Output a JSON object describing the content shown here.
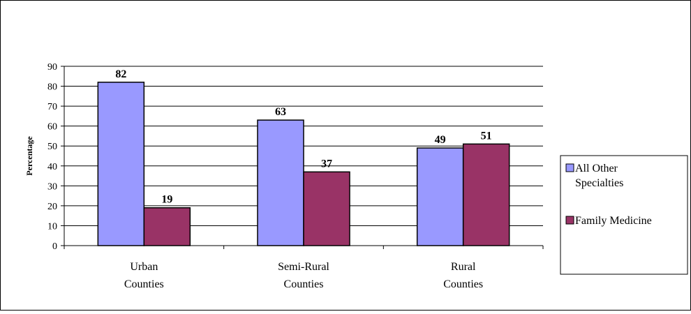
{
  "chart_data": {
    "type": "bar",
    "title": "",
    "xlabel": "",
    "ylabel": "Percentage",
    "ylim": [
      0,
      90
    ],
    "yticks": [
      0,
      10,
      20,
      30,
      40,
      50,
      60,
      70,
      80,
      90
    ],
    "grid": true,
    "legend_position": "right",
    "categories": [
      [
        "Urban",
        "Counties"
      ],
      [
        "Semi-Rural",
        "Counties"
      ],
      [
        "Rural",
        "Counties"
      ]
    ],
    "series": [
      {
        "name": [
          "All Other",
          "Specialties"
        ],
        "color": "#9999ff",
        "values": [
          82,
          63,
          49
        ]
      },
      {
        "name": [
          "Family Medicine"
        ],
        "color": "#993366",
        "values": [
          19,
          37,
          51
        ]
      }
    ]
  }
}
